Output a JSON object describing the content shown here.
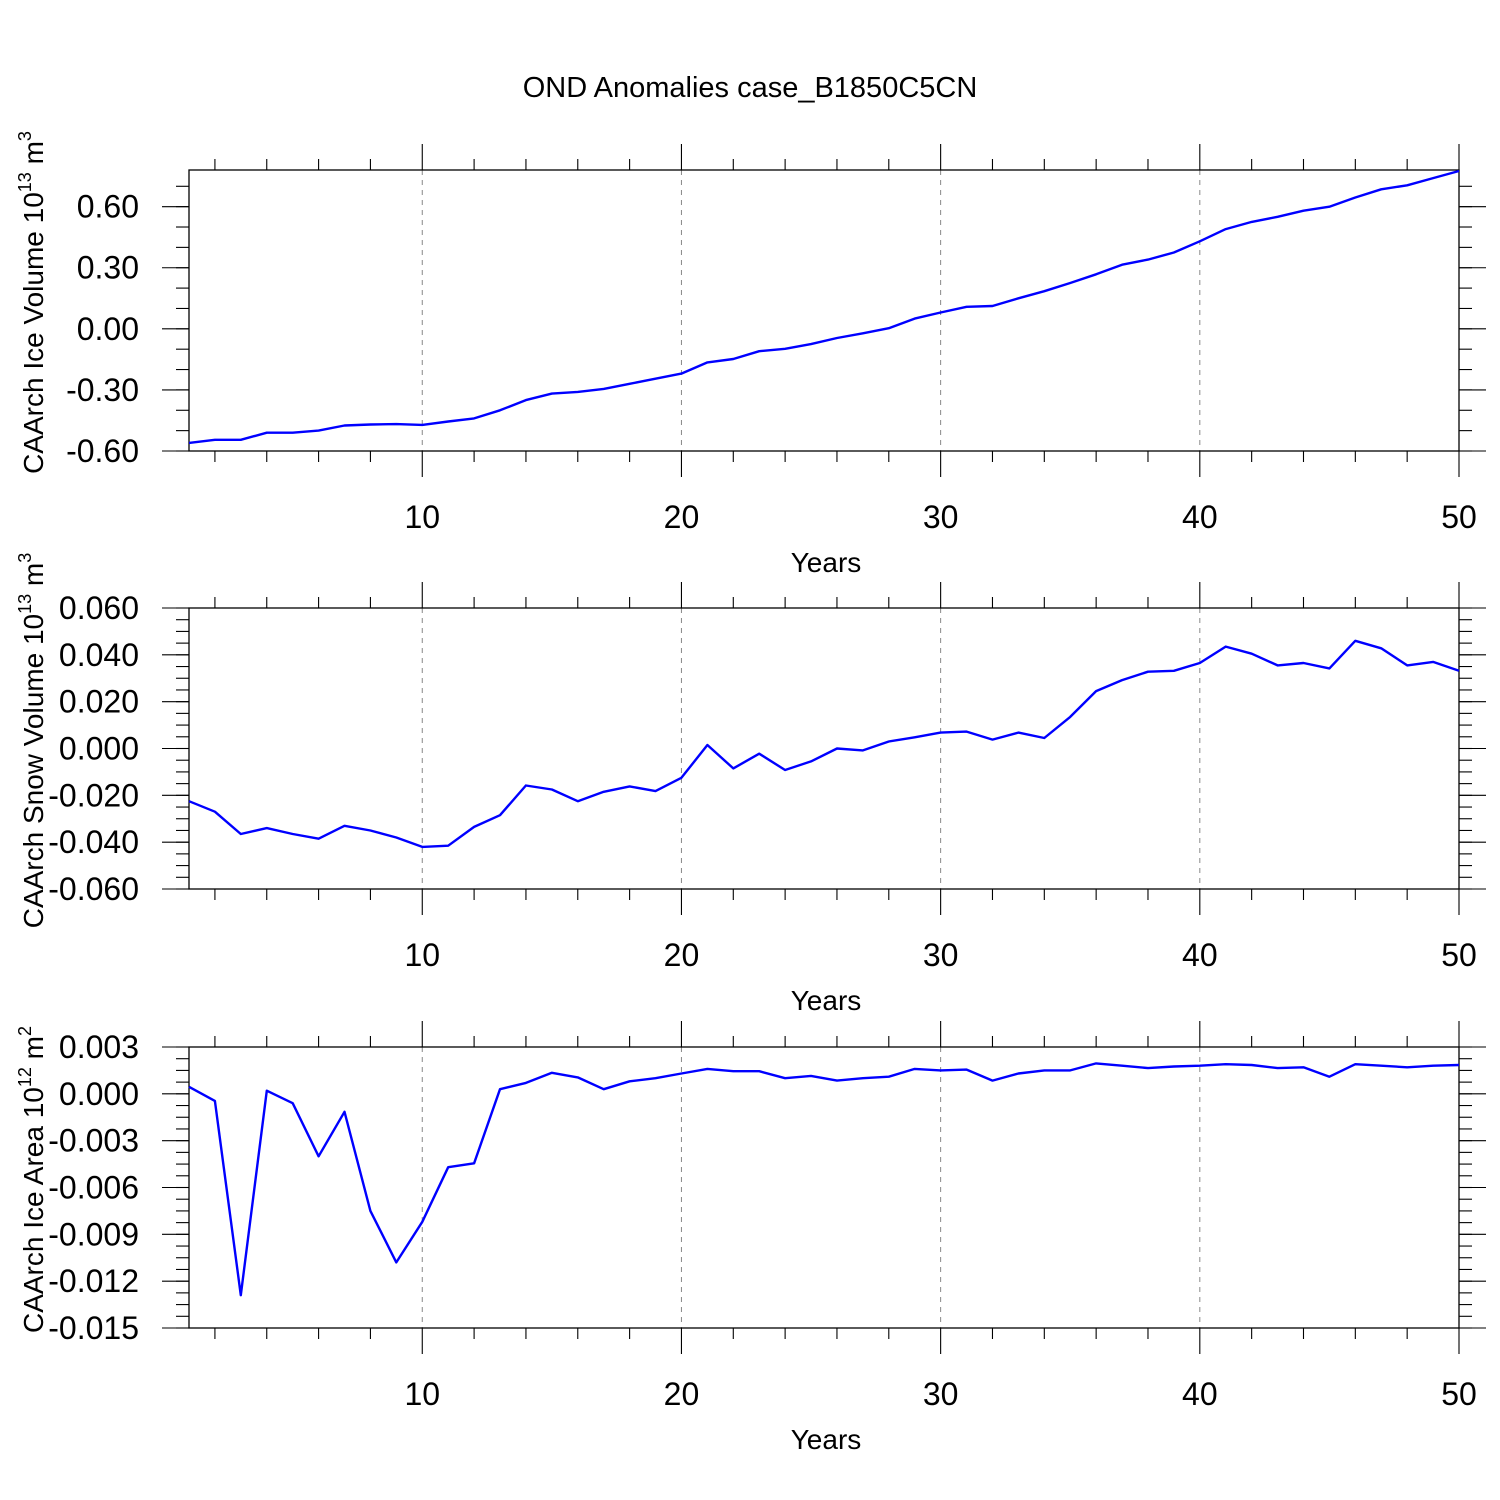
{
  "title": "OND Anomalies case_B1850C5CN",
  "chart_data": [
    {
      "type": "line",
      "ylabel": "CAArch Ice Volume",
      "ylabel_unit": "10",
      "ylabel_exp": "13",
      "ylabel_unit2": "m",
      "ylabel_exp2": "3",
      "xlabel": "Years",
      "xlim": [
        1,
        50
      ],
      "ylim": [
        -0.6,
        0.78
      ],
      "xticks": [
        10,
        20,
        30,
        40,
        50
      ],
      "xtick_labels": [
        "10",
        "20",
        "30",
        "40",
        "50"
      ],
      "yticks": [
        -0.6,
        -0.3,
        0.0,
        0.3,
        0.6
      ],
      "ytick_labels": [
        "-0.60",
        "-0.30",
        "0.00",
        "0.30",
        "0.60"
      ],
      "ytick_minor_step": 0.1,
      "grid": "dashed vertical at major x ticks",
      "x": [
        1,
        2,
        3,
        4,
        5,
        6,
        7,
        8,
        9,
        10,
        11,
        12,
        13,
        14,
        15,
        16,
        17,
        18,
        19,
        20,
        21,
        22,
        23,
        24,
        25,
        26,
        27,
        28,
        29,
        30,
        31,
        32,
        33,
        34,
        35,
        36,
        37,
        38,
        39,
        40,
        41,
        42,
        43,
        44,
        45,
        46,
        47,
        48,
        49,
        50
      ],
      "values": [
        -0.56,
        -0.545,
        -0.545,
        -0.51,
        -0.51,
        -0.5,
        -0.475,
        -0.47,
        -0.468,
        -0.472,
        -0.455,
        -0.44,
        -0.4,
        -0.35,
        -0.318,
        -0.31,
        -0.295,
        -0.27,
        -0.245,
        -0.22,
        -0.165,
        -0.148,
        -0.11,
        -0.098,
        -0.075,
        -0.045,
        -0.022,
        0.003,
        0.05,
        0.08,
        0.108,
        0.112,
        0.15,
        0.185,
        0.225,
        0.268,
        0.315,
        0.34,
        0.375,
        0.43,
        0.49,
        0.525,
        0.55,
        0.58,
        0.6,
        0.645,
        0.685,
        0.705,
        0.74,
        0.775
      ]
    },
    {
      "type": "line",
      "ylabel": "CAArch Snow Volume",
      "ylabel_unit": "10",
      "ylabel_exp": "13",
      "ylabel_unit2": "m",
      "ylabel_exp2": "3",
      "xlabel": "Years",
      "xlim": [
        1,
        50
      ],
      "ylim": [
        -0.06,
        0.06
      ],
      "xticks": [
        10,
        20,
        30,
        40,
        50
      ],
      "xtick_labels": [
        "10",
        "20",
        "30",
        "40",
        "50"
      ],
      "yticks": [
        -0.06,
        -0.04,
        -0.02,
        0.0,
        0.02,
        0.04,
        0.06
      ],
      "ytick_labels": [
        "-0.060",
        "-0.040",
        "-0.020",
        "0.000",
        "0.020",
        "0.040",
        "0.060"
      ],
      "ytick_minor_step": 0.005,
      "grid": "dashed vertical at major x ticks",
      "x": [
        1,
        2,
        3,
        4,
        5,
        6,
        7,
        8,
        9,
        10,
        11,
        12,
        13,
        14,
        15,
        16,
        17,
        18,
        19,
        20,
        21,
        22,
        23,
        24,
        25,
        26,
        27,
        28,
        29,
        30,
        31,
        32,
        33,
        34,
        35,
        36,
        37,
        38,
        39,
        40,
        41,
        42,
        43,
        44,
        45,
        46,
        47,
        48,
        49,
        50
      ],
      "values": [
        -0.0225,
        -0.027,
        -0.0365,
        -0.034,
        -0.0365,
        -0.0385,
        -0.033,
        -0.035,
        -0.038,
        -0.042,
        -0.0415,
        -0.0335,
        -0.0285,
        -0.0158,
        -0.0175,
        -0.0225,
        -0.0185,
        -0.0162,
        -0.0182,
        -0.0125,
        0.0015,
        -0.0085,
        -0.0022,
        -0.0092,
        -0.0055,
        0.0,
        -0.0008,
        0.003,
        0.0048,
        0.0068,
        0.0072,
        0.0038,
        0.0068,
        0.0045,
        0.0135,
        0.0245,
        0.0292,
        0.0328,
        0.0332,
        0.0365,
        0.0435,
        0.0405,
        0.0355,
        0.0365,
        0.0342,
        0.046,
        0.0428,
        0.0355,
        0.037,
        0.0332
      ]
    },
    {
      "type": "line",
      "ylabel": "CAArch Ice Area",
      "ylabel_unit": "10",
      "ylabel_exp": "12",
      "ylabel_unit2": "m",
      "ylabel_exp2": "2",
      "xlabel": "Years",
      "xlim": [
        1,
        50
      ],
      "ylim": [
        -0.015,
        0.003
      ],
      "xticks": [
        10,
        20,
        30,
        40,
        50
      ],
      "xtick_labels": [
        "10",
        "20",
        "30",
        "40",
        "50"
      ],
      "yticks": [
        -0.015,
        -0.012,
        -0.009,
        -0.006,
        -0.003,
        0.0,
        0.003
      ],
      "ytick_labels": [
        "-0.015",
        "-0.012",
        "-0.009",
        "-0.006",
        "-0.003",
        "0.000",
        "0.003"
      ],
      "ytick_minor_step": 0.00075,
      "grid": "dashed vertical at major x ticks",
      "x": [
        1,
        2,
        3,
        4,
        5,
        6,
        7,
        8,
        9,
        10,
        11,
        12,
        13,
        14,
        15,
        16,
        17,
        18,
        19,
        20,
        21,
        22,
        23,
        24,
        25,
        26,
        27,
        28,
        29,
        30,
        31,
        32,
        33,
        34,
        35,
        36,
        37,
        38,
        39,
        40,
        41,
        42,
        43,
        44,
        45,
        46,
        47,
        48,
        49,
        50
      ],
      "values": [
        0.00045,
        -0.00045,
        -0.0129,
        0.0002,
        -0.0006,
        -0.004,
        -0.00115,
        -0.0075,
        -0.0108,
        -0.0082,
        -0.0047,
        -0.00445,
        0.0003,
        0.0007,
        0.00135,
        0.00105,
        0.0003,
        0.0008,
        0.001,
        0.0013,
        0.0016,
        0.00145,
        0.00145,
        0.001,
        0.00115,
        0.00085,
        0.001,
        0.0011,
        0.0016,
        0.0015,
        0.00155,
        0.00085,
        0.0013,
        0.0015,
        0.0015,
        0.00195,
        0.0018,
        0.00165,
        0.00175,
        0.0018,
        0.0019,
        0.00185,
        0.00165,
        0.0017,
        0.0011,
        0.0019,
        0.0018,
        0.0017,
        0.0018,
        0.00185
      ]
    }
  ]
}
